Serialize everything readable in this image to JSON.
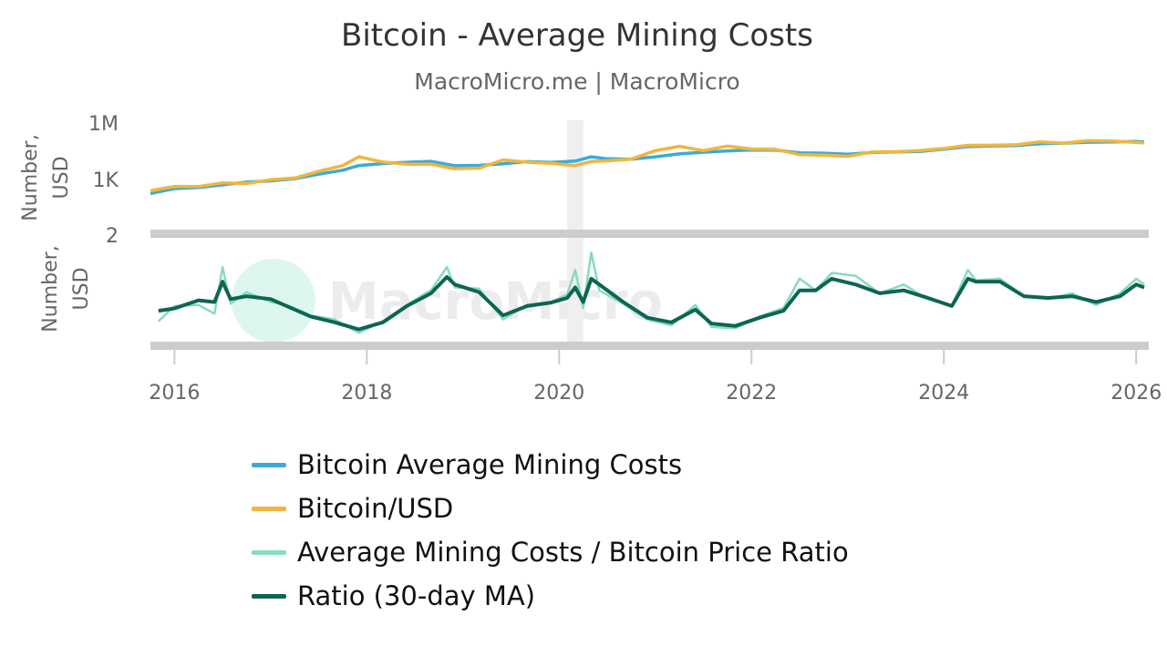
{
  "chart_data": {
    "type": "line",
    "title": "Bitcoin - Average Mining Costs",
    "subtitle": "MacroMicro.me | MacroMicro",
    "watermark": "MacroMicro",
    "x_ticks": [
      "2016",
      "2018",
      "2020",
      "2022",
      "2024",
      "2026"
    ],
    "x_range": [
      "2015-10",
      "2026-02"
    ],
    "shaded_period": [
      "2020-02",
      "2020-04"
    ],
    "panels": [
      {
        "name": "top",
        "ylabel_line1": "Number,",
        "ylabel_line2": "USD",
        "y_scale": "log",
        "y_ticks": [
          "1M",
          "1K"
        ],
        "y_tick_values": [
          1000000,
          1000
        ],
        "series": [
          {
            "name": "Bitcoin Average Mining Costs",
            "color": "#3daad8",
            "x": [
              "2015-10",
              "2016-01",
              "2016-04",
              "2016-07",
              "2016-10",
              "2017-01",
              "2017-04",
              "2017-07",
              "2017-10",
              "2017-12",
              "2018-03",
              "2018-06",
              "2018-09",
              "2018-12",
              "2019-03",
              "2019-06",
              "2019-09",
              "2019-12",
              "2020-03",
              "2020-05",
              "2020-07",
              "2020-10",
              "2021-01",
              "2021-04",
              "2021-07",
              "2021-10",
              "2022-01",
              "2022-04",
              "2022-07",
              "2022-10",
              "2023-01",
              "2023-04",
              "2023-07",
              "2023-10",
              "2024-01",
              "2024-04",
              "2024-07",
              "2024-10",
              "2025-01",
              "2025-04",
              "2025-07",
              "2025-10",
              "2026-01",
              "2026-02"
            ],
            "y": [
              180,
              330,
              370,
              520,
              720,
              850,
              1100,
              1900,
              3100,
              5500,
              7000,
              8200,
              9200,
              5400,
              5600,
              6800,
              8900,
              8000,
              9500,
              16000,
              12500,
              12000,
              16000,
              23000,
              28000,
              33000,
              37000,
              36000,
              26000,
              25000,
              22000,
              27000,
              29000,
              31000,
              41000,
              56000,
              60000,
              63000,
              80000,
              85000,
              95000,
              100000,
              105000,
              100000
            ]
          },
          {
            "name": "Bitcoin/USD",
            "color": "#f0b63e",
            "x": [
              "2015-10",
              "2016-01",
              "2016-04",
              "2016-07",
              "2016-10",
              "2017-01",
              "2017-04",
              "2017-07",
              "2017-10",
              "2017-12",
              "2018-03",
              "2018-06",
              "2018-09",
              "2018-12",
              "2019-03",
              "2019-06",
              "2019-09",
              "2019-12",
              "2020-03",
              "2020-05",
              "2020-07",
              "2020-10",
              "2021-01",
              "2021-04",
              "2021-07",
              "2021-10",
              "2022-01",
              "2022-04",
              "2022-07",
              "2022-10",
              "2023-01",
              "2023-04",
              "2023-07",
              "2023-10",
              "2024-01",
              "2024-04",
              "2024-07",
              "2024-10",
              "2025-01",
              "2025-04",
              "2025-07",
              "2025-10",
              "2026-01",
              "2026-02"
            ],
            "y": [
              250,
              430,
              420,
              660,
              610,
              970,
              1200,
              2700,
              5500,
              16000,
              8500,
              6500,
              6600,
              3700,
              4000,
              11000,
              8300,
              7200,
              5500,
              9000,
              9800,
              12000,
              34000,
              58000,
              34000,
              60000,
              42000,
              40000,
              21000,
              19500,
              17000,
              28500,
              30000,
              34500,
              44000,
              65000,
              66000,
              70000,
              100000,
              85000,
              115000,
              110000,
              92000,
              88000
            ]
          }
        ]
      },
      {
        "name": "bottom",
        "ylabel_line1": "Number,",
        "ylabel_line2": "USD",
        "y_ticks": [
          "2"
        ],
        "y_tick_values": [
          2
        ],
        "ylim": [
          0.2,
          2
        ],
        "series": [
          {
            "name": "Average Mining Costs / Bitcoin Price Ratio",
            "color": "#86dbc1",
            "x": [
              "2015-11",
              "2016-01",
              "2016-04",
              "2016-06",
              "2016-07",
              "2016-08",
              "2016-10",
              "2017-01",
              "2017-03",
              "2017-06",
              "2017-09",
              "2017-12",
              "2018-03",
              "2018-06",
              "2018-09",
              "2018-11",
              "2018-12",
              "2019-03",
              "2019-06",
              "2019-09",
              "2019-12",
              "2020-02",
              "2020-03",
              "2020-04",
              "2020-05",
              "2020-06",
              "2020-09",
              "2020-12",
              "2021-03",
              "2021-06",
              "2021-08",
              "2021-11",
              "2022-02",
              "2022-05",
              "2022-07",
              "2022-09",
              "2022-11",
              "2023-02",
              "2023-05",
              "2023-08",
              "2023-11",
              "2024-02",
              "2024-04",
              "2024-05",
              "2024-08",
              "2024-11",
              "2025-02",
              "2025-05",
              "2025-08",
              "2025-11",
              "2026-01",
              "2026-02"
            ],
            "y": [
              0.52,
              0.78,
              0.8,
              0.65,
              1.45,
              0.82,
              1.02,
              0.85,
              0.8,
              0.62,
              0.55,
              0.32,
              0.52,
              0.8,
              1.05,
              1.45,
              1.1,
              1.08,
              0.55,
              0.8,
              0.85,
              0.98,
              1.4,
              0.75,
              1.7,
              1.05,
              0.82,
              0.55,
              0.45,
              0.8,
              0.42,
              0.4,
              0.6,
              0.75,
              1.25,
              1.05,
              1.35,
              1.3,
              1.0,
              1.15,
              0.9,
              0.78,
              1.4,
              1.22,
              1.25,
              0.95,
              0.9,
              1.0,
              0.8,
              1.0,
              1.25,
              1.15
            ]
          },
          {
            "name": "Ratio (30-day MA)",
            "color": "#0d6552",
            "x": [
              "2015-11",
              "2016-01",
              "2016-04",
              "2016-06",
              "2016-07",
              "2016-08",
              "2016-10",
              "2017-01",
              "2017-03",
              "2017-06",
              "2017-09",
              "2017-12",
              "2018-03",
              "2018-06",
              "2018-09",
              "2018-11",
              "2018-12",
              "2019-03",
              "2019-06",
              "2019-09",
              "2019-12",
              "2020-02",
              "2020-03",
              "2020-04",
              "2020-05",
              "2020-06",
              "2020-09",
              "2020-12",
              "2021-03",
              "2021-06",
              "2021-08",
              "2021-11",
              "2022-02",
              "2022-05",
              "2022-07",
              "2022-09",
              "2022-11",
              "2023-02",
              "2023-05",
              "2023-08",
              "2023-11",
              "2024-02",
              "2024-04",
              "2024-05",
              "2024-08",
              "2024-11",
              "2025-02",
              "2025-05",
              "2025-08",
              "2025-11",
              "2026-01",
              "2026-02"
            ],
            "y": [
              0.7,
              0.74,
              0.88,
              0.85,
              1.2,
              0.9,
              0.95,
              0.9,
              0.78,
              0.6,
              0.5,
              0.38,
              0.5,
              0.78,
              1.0,
              1.28,
              1.15,
              1.02,
              0.62,
              0.78,
              0.84,
              0.92,
              1.1,
              0.85,
              1.25,
              1.15,
              0.85,
              0.58,
              0.5,
              0.72,
              0.48,
              0.44,
              0.58,
              0.7,
              1.05,
              1.05,
              1.25,
              1.15,
              1.0,
              1.05,
              0.92,
              0.78,
              1.25,
              1.2,
              1.2,
              0.95,
              0.92,
              0.95,
              0.85,
              0.95,
              1.15,
              1.1
            ]
          }
        ]
      }
    ]
  }
}
